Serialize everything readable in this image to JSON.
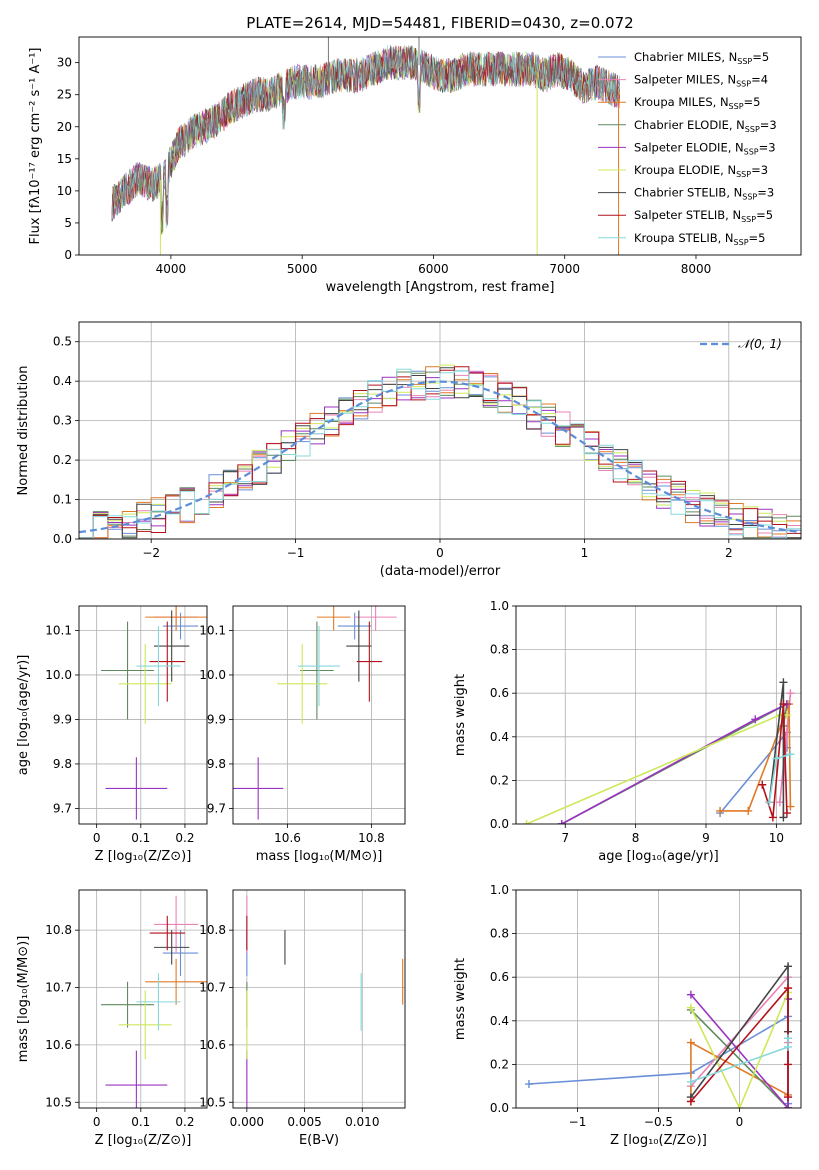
{
  "figure_title": "PLATE=2614, MJD=54481, FIBERID=0430, z=0.072",
  "colors": {
    "Chabrier MILES": "#6a8fd8",
    "Salpeter MILES": "#ea82b6",
    "Kroupa MILES": "#e07a26",
    "Chabrier ELODIE": "#5f8a5f",
    "Salpeter ELODIE": "#9a33c0",
    "Kroupa ELODIE": "#cde85a",
    "Chabrier STELIB": "#444444",
    "Salpeter STELIB": "#b3121b",
    "Kroupa STELIB": "#86d8dc",
    "gaussian": "#5b8dd9"
  },
  "chart_data": [
    {
      "id": "spectrum",
      "type": "line",
      "xlabel": "wavelength [Angstrom, rest frame]",
      "ylabel": "Flux [fλ10⁻¹⁷ erg cm⁻² s⁻¹ A⁻¹]",
      "xlim": [
        3300,
        8800
      ],
      "ylim": [
        0,
        34
      ],
      "xticks": [
        4000,
        5000,
        6000,
        7000,
        8000
      ],
      "yticks": [
        0,
        5,
        10,
        15,
        20,
        25,
        30
      ],
      "grid": false,
      "legend_position": "top-right",
      "spectrum_points": [
        [
          3550,
          8
        ],
        [
          3650,
          10
        ],
        [
          3750,
          12
        ],
        [
          3850,
          11
        ],
        [
          3950,
          12
        ],
        [
          4050,
          17
        ],
        [
          4150,
          19
        ],
        [
          4250,
          20
        ],
        [
          4350,
          21
        ],
        [
          4450,
          23
        ],
        [
          4550,
          24
        ],
        [
          4650,
          25
        ],
        [
          4750,
          25
        ],
        [
          4850,
          26
        ],
        [
          4950,
          27
        ],
        [
          5050,
          27
        ],
        [
          5150,
          27
        ],
        [
          5250,
          28
        ],
        [
          5350,
          28
        ],
        [
          5450,
          28
        ],
        [
          5550,
          29
        ],
        [
          5650,
          30
        ],
        [
          5750,
          30
        ],
        [
          5850,
          30
        ],
        [
          5950,
          29
        ],
        [
          6050,
          28
        ],
        [
          6150,
          28
        ],
        [
          6250,
          29
        ],
        [
          6350,
          29
        ],
        [
          6450,
          29
        ],
        [
          6550,
          29
        ],
        [
          6650,
          29
        ],
        [
          6750,
          29
        ],
        [
          6850,
          28
        ],
        [
          6950,
          29
        ],
        [
          7050,
          28
        ],
        [
          7150,
          26
        ],
        [
          7250,
          27
        ],
        [
          7350,
          26
        ],
        [
          7450,
          25
        ]
      ],
      "legend": [
        {
          "name": "Chabrier MILES",
          "nssp": "5"
        },
        {
          "name": "Salpeter MILES",
          "nssp": "4"
        },
        {
          "name": "Kroupa MILES",
          "nssp": "5"
        },
        {
          "name": "Chabrier ELODIE",
          "nssp": "3"
        },
        {
          "name": "Salpeter ELODIE",
          "nssp": "3"
        },
        {
          "name": "Kroupa ELODIE",
          "nssp": "3"
        },
        {
          "name": "Chabrier STELIB",
          "nssp": "3"
        },
        {
          "name": "Salpeter STELIB",
          "nssp": "5"
        },
        {
          "name": "Kroupa STELIB",
          "nssp": "5"
        }
      ]
    },
    {
      "id": "residual_histogram",
      "type": "bar",
      "xlabel": "(data-model)/error",
      "ylabel": "Normed distribution",
      "xlim": [
        -2.5,
        2.5
      ],
      "ylim": [
        0,
        0.55
      ],
      "xticks": [
        -2,
        -1,
        0,
        1,
        2
      ],
      "yticks": [
        0.0,
        0.1,
        0.2,
        0.3,
        0.4,
        0.5
      ],
      "grid": true,
      "legend_position": "top-right",
      "reference_curve": "𝒩(0, 1)",
      "bin_width": 0.1,
      "bin_start": -2.5
    },
    {
      "id": "age_vs_Z",
      "type": "scatter",
      "xlabel": "Z [log₁₀(Z/Z⊙)]",
      "ylabel": "age  [log₁₀(age/yr)]",
      "xlim": [
        -0.04,
        0.25
      ],
      "ylim": [
        9.665,
        10.155
      ],
      "xticks": [
        0.0,
        0.1,
        0.2
      ],
      "yticks": [
        9.7,
        9.8,
        9.9,
        10.0,
        10.1
      ],
      "grid": true
    },
    {
      "id": "age_vs_mass",
      "type": "scatter",
      "xlabel": "mass [log₁₀(M/M⊙)]",
      "ylabel": "",
      "xlim": [
        10.47,
        10.88
      ],
      "ylim": [
        9.665,
        10.155
      ],
      "xticks": [
        10.6,
        10.8
      ],
      "yticks": [
        9.7,
        9.8,
        9.9,
        10.0,
        10.1
      ],
      "grid": true
    },
    {
      "id": "massweight_vs_age",
      "type": "line",
      "xlabel": "age  [log₁₀(age/yr)]",
      "ylabel": "mass weight",
      "xlim": [
        6.3,
        10.35
      ],
      "ylim": [
        0,
        1
      ],
      "xticks": [
        7,
        8,
        9,
        10
      ],
      "yticks": [
        0.0,
        0.2,
        0.4,
        0.6,
        0.8,
        1.0
      ],
      "grid": true
    },
    {
      "id": "mass_vs_Z",
      "type": "scatter",
      "xlabel": "Z [log₁₀(Z/Z⊙)]",
      "ylabel": "mass [log₁₀(M/M⊙)]",
      "xlim": [
        -0.04,
        0.25
      ],
      "ylim": [
        10.49,
        10.87
      ],
      "xticks": [
        0.0,
        0.1,
        0.2
      ],
      "yticks": [
        10.5,
        10.6,
        10.7,
        10.8
      ],
      "grid": true
    },
    {
      "id": "mass_vs_EBV",
      "type": "scatter",
      "xlabel": "E(B-V)",
      "ylabel": "",
      "xlim": [
        -0.0012,
        0.0137
      ],
      "ylim": [
        10.49,
        10.87
      ],
      "xticks": [
        0.0,
        0.005,
        0.01
      ],
      "xtick_labels": [
        "0.000",
        "0.005",
        "0.010"
      ],
      "yticks": [
        10.5,
        10.6,
        10.7,
        10.8
      ],
      "grid": true
    },
    {
      "id": "massweight_vs_Z",
      "type": "line",
      "xlabel": "Z [log₁₀(Z/Z⊙)]",
      "ylabel": "mass weight",
      "xlim": [
        -1.38,
        0.38
      ],
      "ylim": [
        0,
        1
      ],
      "xticks": [
        -1.0,
        -0.5,
        0.0
      ],
      "yticks": [
        0.0,
        0.2,
        0.4,
        0.6,
        0.8,
        1.0
      ],
      "grid": true
    }
  ],
  "models": [
    {
      "name": "Chabrier MILES",
      "Z": 0.19,
      "Zerr": 0.04,
      "age": 10.11,
      "ageerr": 0.03,
      "mass": 10.76,
      "masserr": 0.04,
      "ebv": 0.0,
      "ebverr": 0.02,
      "sfh_age": [
        9.2,
        10.15,
        10.15
      ],
      "sfh_w": [
        0.05,
        0.42,
        0.35
      ],
      "sfh_Z": [
        -1.3,
        -0.3,
        0.3,
        0.3
      ],
      "sfh_Zw": [
        0.11,
        0.16,
        0.42,
        0.02
      ]
    },
    {
      "name": "Salpeter MILES",
      "Z": 0.18,
      "Zerr": 0.05,
      "age": 10.13,
      "ageerr": 0.03,
      "mass": 10.81,
      "masserr": 0.05,
      "ebv": 0.0,
      "ebverr": 0.03,
      "sfh_age": [
        10.1,
        10.2,
        10.05
      ],
      "sfh_w": [
        0.2,
        0.6,
        0.1
      ],
      "sfh_Z": [
        -0.3,
        0.3,
        0.3,
        0.3
      ],
      "sfh_Zw": [
        0.1,
        0.6,
        0.3,
        0.05
      ]
    },
    {
      "name": "Kroupa MILES",
      "Z": 0.18,
      "Zerr": 0.07,
      "age": 10.13,
      "ageerr": 0.03,
      "mass": 10.71,
      "masserr": 0.04,
      "ebv": 0.0135,
      "ebverr": 0.05,
      "sfh_age": [
        9.2,
        9.6,
        10.18,
        10.2
      ],
      "sfh_w": [
        0.06,
        0.06,
        0.55,
        0.08
      ],
      "sfh_Z": [
        -0.3,
        -0.3,
        0.3,
        0.3
      ],
      "sfh_Zw": [
        0.03,
        0.3,
        0.06,
        0.55
      ]
    },
    {
      "name": "Chabrier ELODIE",
      "Z": 0.07,
      "Zerr": 0.06,
      "age": 10.01,
      "ageerr": 0.11,
      "mass": 10.67,
      "masserr": 0.04,
      "ebv": 0.0,
      "ebverr": 0.01,
      "sfh_age": [
        6.95,
        10.15,
        10.1
      ],
      "sfh_w": [
        0.0,
        0.55,
        0.45
      ],
      "sfh_Z": [
        -0.3,
        0.3,
        0.3
      ],
      "sfh_Zw": [
        0.45,
        0.0,
        0.5
      ]
    },
    {
      "name": "Salpeter ELODIE",
      "Z": 0.09,
      "Zerr": 0.07,
      "age": 9.745,
      "ageerr": 0.07,
      "mass": 10.53,
      "masserr": 0.06,
      "ebv": 0.0,
      "ebverr": 0.01,
      "sfh_age": [
        6.95,
        9.7,
        10.15
      ],
      "sfh_w": [
        0.0,
        0.48,
        0.55
      ],
      "sfh_Z": [
        -0.3,
        0.3,
        0.3
      ],
      "sfh_Zw": [
        0.52,
        0.0,
        0.5
      ]
    },
    {
      "name": "Kroupa ELODIE",
      "Z": 0.11,
      "Zerr": 0.06,
      "age": 9.98,
      "ageerr": 0.09,
      "mass": 10.635,
      "masserr": 0.06,
      "ebv": 0.0,
      "ebverr": 0.02,
      "sfh_age": [
        6.45,
        10.05,
        10.15
      ],
      "sfh_w": [
        0.0,
        0.5,
        0.5
      ],
      "sfh_Z": [
        -0.3,
        0.0,
        0.3
      ],
      "sfh_Zw": [
        0.46,
        0.0,
        0.53
      ]
    },
    {
      "name": "Chabrier STELIB",
      "Z": 0.17,
      "Zerr": 0.04,
      "age": 10.065,
      "ageerr": 0.08,
      "mass": 10.77,
      "masserr": 0.03,
      "ebv": 0.0033,
      "ebverr": 0.01,
      "sfh_age": [
        9.9,
        10.1,
        10.1
      ],
      "sfh_w": [
        0.1,
        0.65,
        0.03
      ],
      "sfh_Z": [
        -0.3,
        0.3,
        0.3
      ],
      "sfh_Zw": [
        0.05,
        0.65,
        0.35
      ]
    },
    {
      "name": "Salpeter STELIB",
      "Z": 0.16,
      "Zerr": 0.04,
      "age": 10.03,
      "ageerr": 0.09,
      "mass": 10.795,
      "masserr": 0.03,
      "ebv": 0.0,
      "ebverr": 0.03,
      "sfh_age": [
        9.8,
        9.95,
        10.1,
        10.15
      ],
      "sfh_w": [
        0.18,
        0.03,
        0.55,
        0.05
      ],
      "sfh_Z": [
        -0.3,
        0.3,
        0.3,
        0.3
      ],
      "sfh_Zw": [
        0.03,
        0.55,
        0.2,
        0.05
      ]
    },
    {
      "name": "Kroupa STELIB",
      "Z": 0.14,
      "Zerr": 0.05,
      "age": 10.02,
      "ageerr": 0.09,
      "mass": 10.675,
      "masserr": 0.05,
      "ebv": 0.0099,
      "ebverr": 0.02,
      "sfh_age": [
        9.9,
        10.0,
        10.2
      ],
      "sfh_w": [
        0.1,
        0.3,
        0.32
      ],
      "sfh_Z": [
        -0.3,
        0.3,
        0.3
      ],
      "sfh_Zw": [
        0.12,
        0.28,
        0.32
      ]
    }
  ]
}
